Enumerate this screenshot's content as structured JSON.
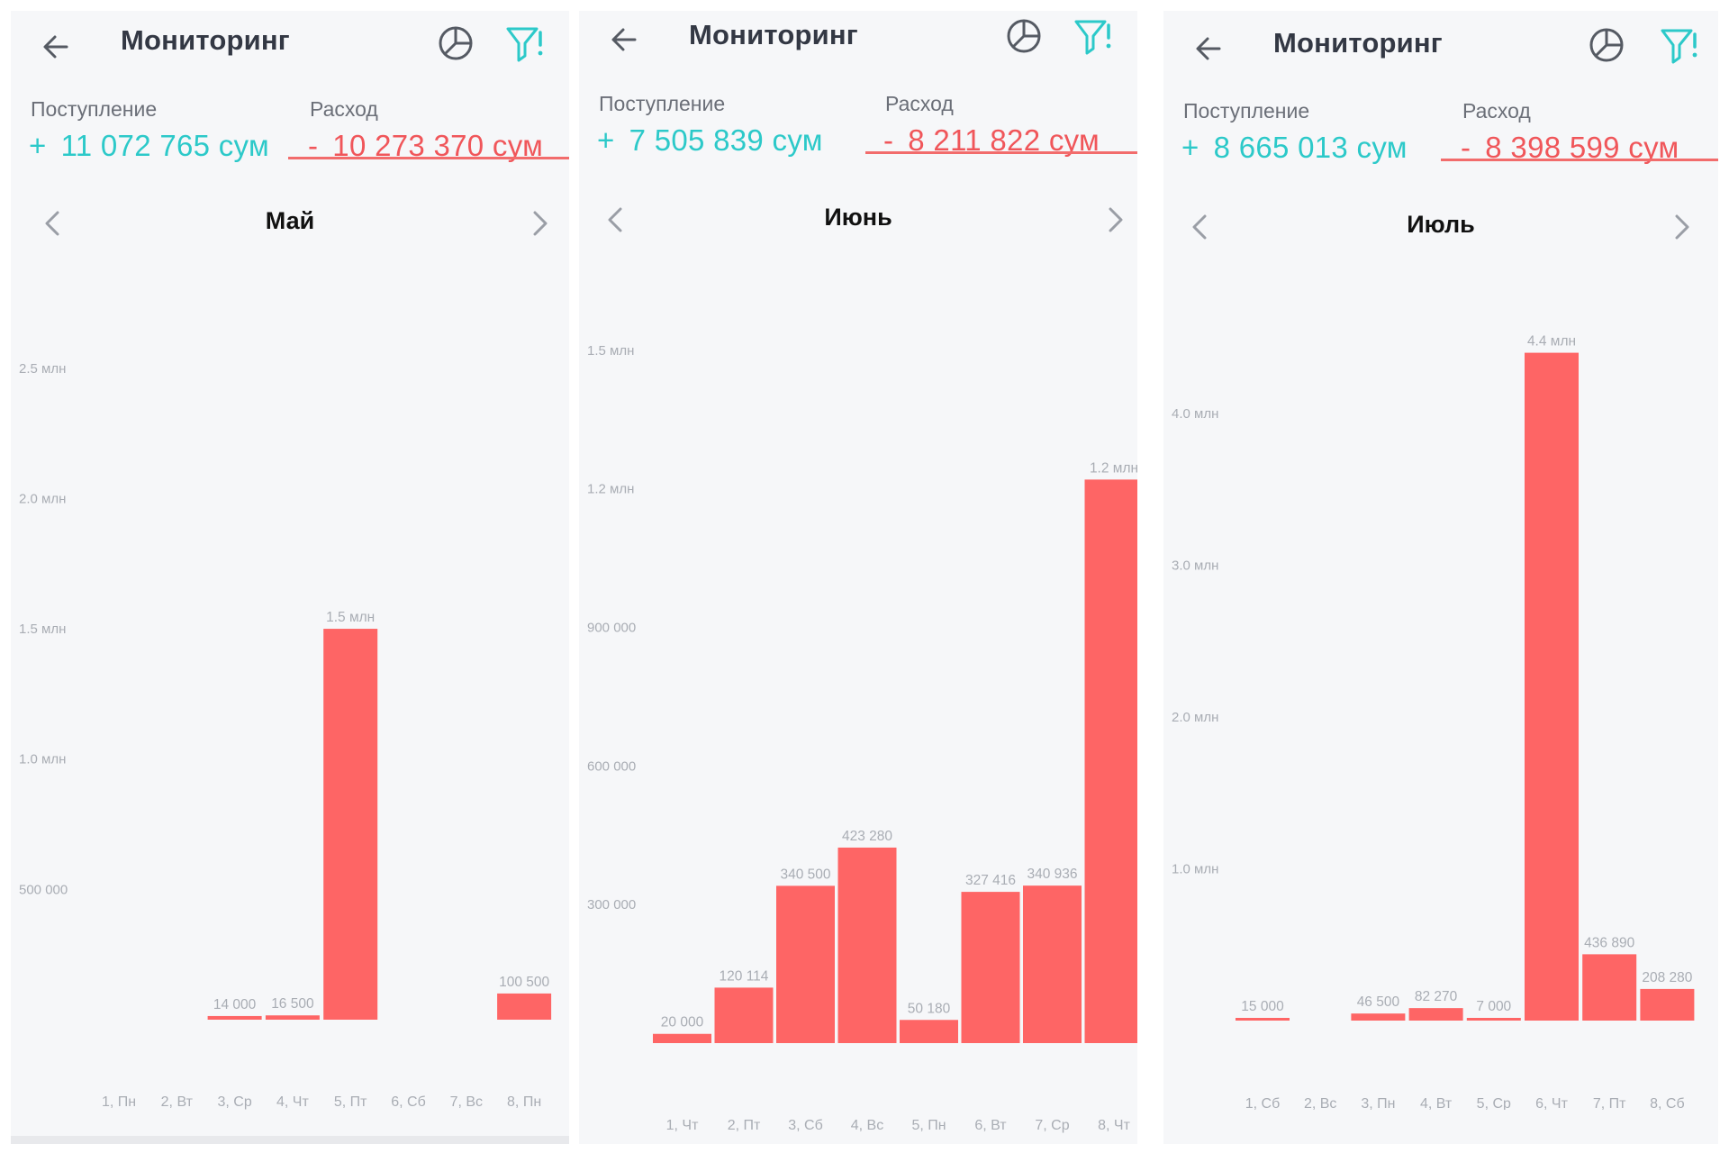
{
  "panels": [
    {
      "header_title": "Мониторинг",
      "income": {
        "label": "Поступление",
        "sign": "+",
        "value": "11 072 765 сум"
      },
      "expense": {
        "label": "Расход",
        "sign": "-",
        "value": "10 273 370 сум"
      },
      "month": "Май"
    },
    {
      "header_title": "Мониторинг",
      "income": {
        "label": "Поступление",
        "sign": "+",
        "value": "7 505 839 сум"
      },
      "expense": {
        "label": "Расход",
        "sign": "-",
        "value": "8 211 822 сум"
      },
      "month": "Июнь"
    },
    {
      "header_title": "Мониторинг",
      "income": {
        "label": "Поступление",
        "sign": "+",
        "value": "8 665 013 сум"
      },
      "expense": {
        "label": "Расход",
        "sign": "-",
        "value": "8 398 599 сум"
      },
      "month": "Июль"
    }
  ],
  "colors": {
    "accent": "#2cc9c9",
    "expense": "#f0565a",
    "bar": "#fe6565",
    "background": "#f6f7f9"
  },
  "icons": [
    "arrow-left-icon",
    "pie-chart-icon",
    "filter-icon",
    "chevron-left-icon",
    "chevron-right-icon"
  ],
  "chart_data": [
    {
      "type": "bar",
      "month": "Май",
      "categories": [
        "1, Пн",
        "2, Вт",
        "3, Ср",
        "4, Чт",
        "5, Пт",
        "6, Сб",
        "7, Вс",
        "8, Пн"
      ],
      "values": [
        0,
        0,
        14000,
        16500,
        1500000,
        0,
        0,
        100500
      ],
      "data_labels": [
        "",
        "",
        "14 000",
        "16 500",
        "1.5 млн",
        "",
        "",
        "100 500"
      ],
      "yticks": [
        500000,
        1000000,
        1500000,
        2000000,
        2500000
      ],
      "ytick_labels": [
        "500 000",
        "1.0 млн",
        "1.5 млн",
        "2.0 млн",
        "2.5 млн"
      ],
      "ylim": [
        0,
        2800000
      ],
      "grid": false
    },
    {
      "type": "bar",
      "month": "Июнь",
      "categories": [
        "1, Чт",
        "2, Пт",
        "3, Сб",
        "4, Вс",
        "5, Пн",
        "6, Вт",
        "7, Ср",
        "8, Чт"
      ],
      "values": [
        20000,
        120114,
        340500,
        423280,
        50180,
        327416,
        340936,
        1220000
      ],
      "data_labels": [
        "20 000",
        "120 114",
        "340 500",
        "423 280",
        "50 180",
        "327 416",
        "340 936",
        "1.2 млн"
      ],
      "yticks": [
        300000,
        600000,
        900000,
        1200000,
        1500000
      ],
      "ytick_labels": [
        "300 000",
        "600 000",
        "900 000",
        "1.2 млн",
        "1.5 млн"
      ],
      "ylim": [
        0,
        1650000
      ],
      "grid": false
    },
    {
      "type": "bar",
      "month": "Июль",
      "categories": [
        "1, Сб",
        "2, Вс",
        "3, Пн",
        "4, Вт",
        "5, Ср",
        "6, Чт",
        "7, Пт",
        "8, Сб"
      ],
      "values": [
        15000,
        0,
        46500,
        82270,
        7000,
        4400000,
        436890,
        208280
      ],
      "data_labels": [
        "15 000",
        "",
        "46 500",
        "82 270",
        "7 000",
        "4.4 млн",
        "436 890",
        "208 280"
      ],
      "yticks": [
        1000000,
        2000000,
        3000000,
        4000000
      ],
      "ytick_labels": [
        "1.0 млн",
        "2.0 млн",
        "3.0 млн",
        "4.0 млн"
      ],
      "ylim": [
        0,
        4700000
      ],
      "grid": false
    }
  ]
}
